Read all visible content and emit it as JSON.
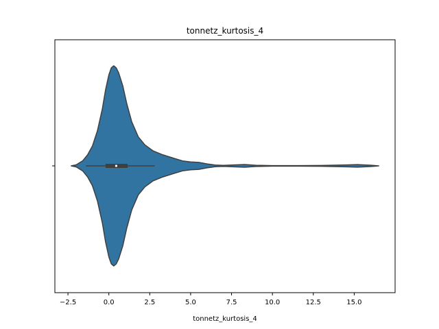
{
  "chart_data": {
    "type": "violin",
    "title": "tonnetz_kurtosis_4",
    "xlabel": "tonnetz_kurtosis_4",
    "ylabel": "",
    "xlim": [
      -3.3,
      17.5
    ],
    "xticks": [
      -2.5,
      0.0,
      2.5,
      5.0,
      7.5,
      10.0,
      12.5,
      15.0
    ],
    "xtick_labels": [
      "−2.5",
      "0.0",
      "2.5",
      "5.0",
      "7.5",
      "10.0",
      "12.5",
      "15.0"
    ],
    "grid": false,
    "fill_color": "#3274a1",
    "edge_color": "#3f3f3f",
    "density_profile": [
      {
        "x": -2.3,
        "d": 0.0
      },
      {
        "x": -2.0,
        "d": 0.01
      },
      {
        "x": -1.6,
        "d": 0.05
      },
      {
        "x": -1.3,
        "d": 0.11
      },
      {
        "x": -1.0,
        "d": 0.2
      },
      {
        "x": -0.7,
        "d": 0.35
      },
      {
        "x": -0.4,
        "d": 0.57
      },
      {
        "x": -0.2,
        "d": 0.76
      },
      {
        "x": 0.0,
        "d": 0.91
      },
      {
        "x": 0.15,
        "d": 0.98
      },
      {
        "x": 0.3,
        "d": 1.0
      },
      {
        "x": 0.45,
        "d": 0.98
      },
      {
        "x": 0.6,
        "d": 0.93
      },
      {
        "x": 0.85,
        "d": 0.8
      },
      {
        "x": 1.1,
        "d": 0.62
      },
      {
        "x": 1.4,
        "d": 0.44
      },
      {
        "x": 1.8,
        "d": 0.29
      },
      {
        "x": 2.2,
        "d": 0.21
      },
      {
        "x": 2.7,
        "d": 0.15
      },
      {
        "x": 3.3,
        "d": 0.11
      },
      {
        "x": 4.0,
        "d": 0.075
      },
      {
        "x": 4.5,
        "d": 0.05
      },
      {
        "x": 5.0,
        "d": 0.04
      },
      {
        "x": 5.5,
        "d": 0.035
      },
      {
        "x": 6.0,
        "d": 0.02
      },
      {
        "x": 6.5,
        "d": 0.008
      },
      {
        "x": 7.0,
        "d": 0.005
      },
      {
        "x": 7.5,
        "d": 0.008
      },
      {
        "x": 8.3,
        "d": 0.014
      },
      {
        "x": 9.0,
        "d": 0.006
      },
      {
        "x": 10.0,
        "d": 0.003
      },
      {
        "x": 11.5,
        "d": 0.003
      },
      {
        "x": 13.0,
        "d": 0.004
      },
      {
        "x": 14.2,
        "d": 0.008
      },
      {
        "x": 15.2,
        "d": 0.013
      },
      {
        "x": 16.0,
        "d": 0.007
      },
      {
        "x": 16.5,
        "d": 0.0
      }
    ],
    "box": {
      "whisker_low": -1.4,
      "q1": -0.2,
      "median": 0.45,
      "q3": 1.15,
      "whisker_high": 2.8
    }
  }
}
